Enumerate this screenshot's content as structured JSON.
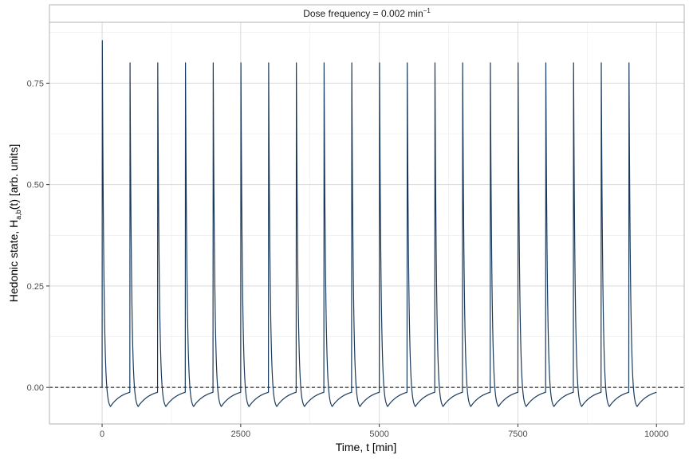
{
  "chart_data": {
    "type": "line",
    "strip": {
      "prefix": "Dose frequency = 0.002 min",
      "superscript": "−1"
    },
    "xlabel": "Time, t [min]",
    "ylabel": {
      "prefix": "Hedonic state, H",
      "subscript": "a,b",
      "suffix": "(t) [arb. units]"
    },
    "xlim": [
      -950,
      10500
    ],
    "ylim": [
      -0.09,
      0.9
    ],
    "x_ticks": [
      0,
      2500,
      5000,
      7500,
      10000
    ],
    "x_tick_labels": [
      "0",
      "2500",
      "5000",
      "7500",
      "10000"
    ],
    "y_ticks": [
      0.0,
      0.25,
      0.5,
      0.75
    ],
    "y_tick_labels": [
      "0.00",
      "0.25",
      "0.50",
      "0.75"
    ],
    "grid": true,
    "reference_line": {
      "y": 0,
      "style": "dashed",
      "color": "#000000"
    },
    "series": [
      {
        "color": "#1a3a5c",
        "dose_interval": 500,
        "dose_times": [
          0,
          500,
          1000,
          1500,
          2000,
          2500,
          3000,
          3500,
          4000,
          4500,
          5000,
          5500,
          6000,
          6500,
          7000,
          7500,
          8000,
          8500,
          9000,
          9500
        ],
        "peak_values": [
          0.855,
          0.8,
          0.8,
          0.8,
          0.8,
          0.8,
          0.8,
          0.8,
          0.8,
          0.8,
          0.8,
          0.8,
          0.8,
          0.8,
          0.8,
          0.8,
          0.8,
          0.8,
          0.8,
          0.8
        ],
        "trough_value": -0.047,
        "trough_time_after_dose": 150,
        "end_value": -0.012,
        "x_end": 10000
      }
    ]
  },
  "colors": {
    "panel_border": "#b3b3b3",
    "grid_major": "#d9d9d9",
    "grid_minor": "#ebebeb",
    "strip_background": "#ffffff"
  }
}
